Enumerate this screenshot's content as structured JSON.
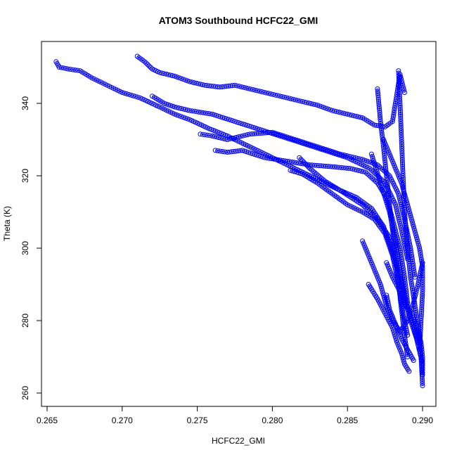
{
  "chart_data": {
    "type": "scatter",
    "title": "ATOM3 Southbound HCFC22_GMI",
    "xlabel": "HCFC22_GMI",
    "ylabel": "Theta (K)",
    "xlim": [
      0.265,
      0.29
    ],
    "ylim": [
      260,
      350
    ],
    "xticks": [
      0.265,
      0.27,
      0.275,
      0.28,
      0.285,
      0.29
    ],
    "xtick_labels": [
      "0.265",
      "0.270",
      "0.275",
      "0.280",
      "0.285",
      "0.290"
    ],
    "yticks": [
      260,
      280,
      300,
      320,
      340
    ],
    "ytick_labels": [
      "260",
      "280",
      "300",
      "320",
      "340"
    ],
    "marker": "open-circle",
    "color": "#0000ff",
    "grid": false,
    "legend": "none",
    "series": [
      {
        "tracks": [
          [
            [
              0.2656,
              351.5
            ],
            [
              0.2658,
              350.0
            ],
            [
              0.2664,
              349.5
            ],
            [
              0.2672,
              349.0
            ],
            [
              0.268,
              347.0
            ],
            [
              0.269,
              345.0
            ],
            [
              0.27,
              343.0
            ],
            [
              0.2712,
              341.5
            ],
            [
              0.2725,
              339.0
            ],
            [
              0.2735,
              337.0
            ],
            [
              0.2745,
              335.5
            ],
            [
              0.2758,
              333.0
            ],
            [
              0.277,
              331.0
            ],
            [
              0.2785,
              328.0
            ],
            [
              0.28,
              325.0
            ],
            [
              0.2815,
              322.0
            ],
            [
              0.283,
              319.0
            ],
            [
              0.2845,
              316.0
            ],
            [
              0.286,
              312.0
            ],
            [
              0.287,
              308.0
            ],
            [
              0.2878,
              303.0
            ],
            [
              0.2882,
              298.0
            ]
          ],
          [
            [
              0.271,
              353.0
            ],
            [
              0.2715,
              351.5
            ],
            [
              0.272,
              349.5
            ],
            [
              0.2725,
              348.5
            ],
            [
              0.2735,
              347.5
            ],
            [
              0.2745,
              346.0
            ],
            [
              0.2755,
              345.0
            ],
            [
              0.2765,
              344.5
            ],
            [
              0.2775,
              345.0
            ],
            [
              0.279,
              343.5
            ],
            [
              0.2805,
              342.0
            ],
            [
              0.282,
              340.5
            ],
            [
              0.283,
              339.5
            ],
            [
              0.284,
              338.0
            ],
            [
              0.285,
              337.0
            ],
            [
              0.286,
              336.0
            ],
            [
              0.2868,
              334.0
            ],
            [
              0.2875,
              333.5
            ],
            [
              0.288,
              335.0
            ],
            [
              0.2885,
              348.0
            ],
            [
              0.2888,
              343.0
            ]
          ],
          [
            [
              0.272,
              342.0
            ],
            [
              0.2728,
              340.0
            ],
            [
              0.2735,
              339.0
            ],
            [
              0.2745,
              338.0
            ],
            [
              0.276,
              337.0
            ],
            [
              0.2775,
              335.0
            ],
            [
              0.279,
              333.0
            ],
            [
              0.2805,
              331.0
            ],
            [
              0.282,
              329.0
            ],
            [
              0.2835,
              327.0
            ],
            [
              0.285,
              325.0
            ],
            [
              0.2865,
              322.0
            ],
            [
              0.2875,
              318.0
            ],
            [
              0.2882,
              312.0
            ],
            [
              0.2886,
              305.0
            ],
            [
              0.289,
              297.0
            ]
          ],
          [
            [
              0.2752,
              331.5
            ],
            [
              0.276,
              331.0
            ],
            [
              0.277,
              330.0
            ],
            [
              0.2785,
              331.5
            ],
            [
              0.28,
              332.0
            ],
            [
              0.2815,
              330.0
            ],
            [
              0.283,
              328.0
            ],
            [
              0.2845,
              326.0
            ],
            [
              0.286,
              324.5
            ],
            [
              0.287,
              323.0
            ],
            [
              0.2878,
              320.0
            ],
            [
              0.2884,
              315.0
            ],
            [
              0.2888,
              308.0
            ],
            [
              0.2892,
              300.0
            ],
            [
              0.2895,
              292.0
            ]
          ],
          [
            [
              0.2762,
              327.0
            ],
            [
              0.277,
              326.5
            ],
            [
              0.278,
              327.0
            ],
            [
              0.2795,
              325.0
            ],
            [
              0.281,
              324.0
            ],
            [
              0.2825,
              323.0
            ],
            [
              0.284,
              322.5
            ],
            [
              0.2852,
              322.0
            ],
            [
              0.2862,
              321.0
            ],
            [
              0.287,
              318.0
            ],
            [
              0.2876,
              314.0
            ],
            [
              0.288,
              308.0
            ],
            [
              0.2885,
              300.0
            ],
            [
              0.2888,
              292.0
            ],
            [
              0.289,
              285.0
            ]
          ],
          [
            [
              0.2812,
              321.5
            ],
            [
              0.282,
              320.5
            ],
            [
              0.283,
              318.0
            ],
            [
              0.284,
              315.0
            ],
            [
              0.285,
              312.0
            ],
            [
              0.286,
              310.0
            ],
            [
              0.2868,
              308.0
            ],
            [
              0.2875,
              304.0
            ],
            [
              0.288,
              298.0
            ],
            [
              0.2884,
              290.0
            ],
            [
              0.2887,
              282.0
            ],
            [
              0.289,
              276.0
            ]
          ],
          [
            [
              0.2818,
              325.0
            ],
            [
              0.2825,
              322.0
            ],
            [
              0.2835,
              318.5
            ],
            [
              0.2845,
              316.0
            ],
            [
              0.2856,
              314.0
            ],
            [
              0.2866,
              311.0
            ],
            [
              0.2874,
              306.0
            ],
            [
              0.2879,
              300.0
            ],
            [
              0.2884,
              293.0
            ],
            [
              0.2888,
              287.0
            ],
            [
              0.2893,
              280.0
            ],
            [
              0.2897,
              274.0
            ]
          ],
          [
            [
              0.287,
              344.0
            ],
            [
              0.2872,
              335.0
            ],
            [
              0.2874,
              328.0
            ],
            [
              0.2876,
              320.0
            ],
            [
              0.2878,
              312.0
            ],
            [
              0.288,
              305.0
            ],
            [
              0.2882,
              298.0
            ],
            [
              0.2884,
              290.0
            ],
            [
              0.2886,
              283.0
            ],
            [
              0.2888,
              276.0
            ],
            [
              0.289,
              270.0
            ]
          ],
          [
            [
              0.2884,
              349.0
            ],
            [
              0.2885,
              340.0
            ],
            [
              0.2886,
              330.0
            ],
            [
              0.2887,
              320.0
            ],
            [
              0.2888,
              310.0
            ],
            [
              0.289,
              300.0
            ],
            [
              0.2892,
              292.0
            ],
            [
              0.2895,
              284.0
            ],
            [
              0.2898,
              276.0
            ],
            [
              0.2899,
              270.0
            ],
            [
              0.29,
              262.0
            ]
          ],
          [
            [
              0.2874,
              330.0
            ],
            [
              0.288,
              324.0
            ],
            [
              0.2886,
              318.0
            ],
            [
              0.289,
              312.0
            ],
            [
              0.2894,
              306.0
            ],
            [
              0.2898,
              300.0
            ],
            [
              0.29,
              295.0
            ],
            [
              0.29,
              288.0
            ],
            [
              0.2899,
              280.0
            ],
            [
              0.2898,
              272.0
            ]
          ],
          [
            [
              0.2866,
              326.0
            ],
            [
              0.2872,
              318.0
            ],
            [
              0.2878,
              310.0
            ],
            [
              0.2882,
              302.0
            ],
            [
              0.2885,
              294.0
            ],
            [
              0.2888,
              286.0
            ],
            [
              0.2892,
              280.0
            ],
            [
              0.2896,
              275.0
            ],
            [
              0.29,
              268.0
            ]
          ],
          [
            [
              0.286,
              302.0
            ],
            [
              0.2866,
              296.0
            ],
            [
              0.2872,
              290.0
            ],
            [
              0.2876,
              284.0
            ],
            [
              0.288,
              280.0
            ],
            [
              0.2885,
              277.0
            ],
            [
              0.289,
              280.0
            ],
            [
              0.2894,
              285.0
            ],
            [
              0.2897,
              290.0
            ],
            [
              0.29,
              296.0
            ]
          ],
          [
            [
              0.2876,
              296.0
            ],
            [
              0.288,
              292.0
            ],
            [
              0.2885,
              288.0
            ],
            [
              0.2889,
              284.0
            ],
            [
              0.2893,
              282.0
            ],
            [
              0.2896,
              278.0
            ],
            [
              0.2899,
              274.0
            ],
            [
              0.29,
              270.0
            ],
            [
              0.29,
              265.0
            ]
          ],
          [
            [
              0.2864,
              290.0
            ],
            [
              0.287,
              286.0
            ],
            [
              0.2875,
              282.0
            ],
            [
              0.288,
              278.0
            ],
            [
              0.2883,
              274.0
            ],
            [
              0.2886,
              271.0
            ],
            [
              0.2888,
              268.0
            ],
            [
              0.2891,
              266.0
            ]
          ],
          [
            [
              0.2876,
              287.0
            ],
            [
              0.2878,
              283.0
            ],
            [
              0.2882,
              279.0
            ],
            [
              0.2886,
              275.0
            ],
            [
              0.289,
              272.0
            ],
            [
              0.2894,
              269.0
            ]
          ]
        ]
      }
    ]
  }
}
